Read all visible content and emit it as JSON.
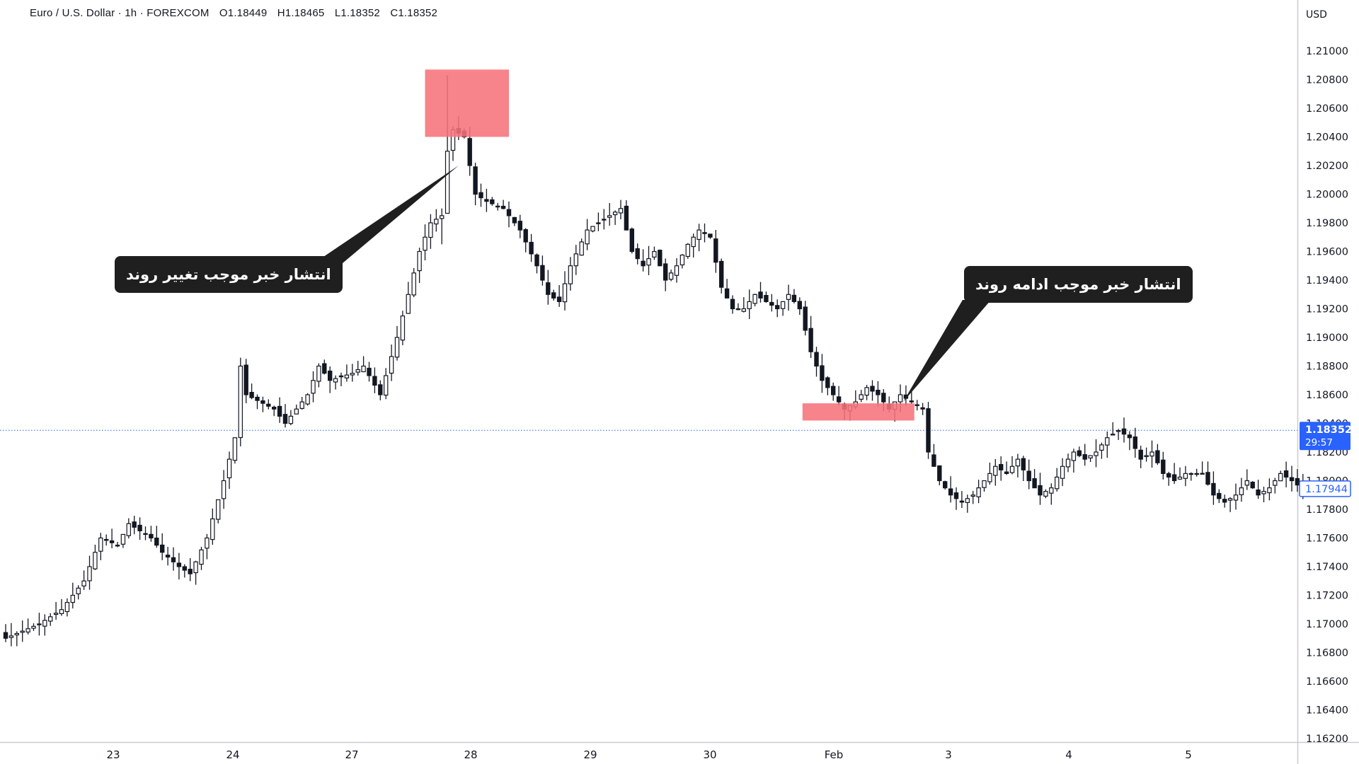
{
  "header": {
    "symbol": "Euro / U.S. Dollar · 1h · FOREXCOM",
    "open": "O1.18449",
    "high": "H1.18465",
    "low": "L1.18352",
    "close": "C1.18352"
  },
  "currency_label": "USD",
  "current_price": {
    "value": 1.18352,
    "label": "1.18352",
    "countdown": "29:57"
  },
  "marker_price": {
    "value": 1.17944,
    "label": "1.17944"
  },
  "annotations": [
    {
      "text": "انتشار خبر موجب تغییر روند"
    },
    {
      "text": "انتشار خبر موجب ادامه روند"
    }
  ],
  "colors": {
    "candle": "#131722",
    "highlight": "#f6727b",
    "price_badge": "#2962ff",
    "callout_bg": "#1f1f1f",
    "axis_text": "#131722"
  },
  "chart_data": {
    "type": "candlestick",
    "x_tick_labels": [
      "23",
      "24",
      "27",
      "28",
      "29",
      "30",
      "Feb",
      "3",
      "4",
      "5"
    ],
    "y_tick_labels": [
      "1.21000",
      "1.20800",
      "1.20600",
      "1.20400",
      "1.20200",
      "1.20000",
      "1.19800",
      "1.19600",
      "1.19400",
      "1.19200",
      "1.19000",
      "1.18800",
      "1.18600",
      "1.18400",
      "1.18200",
      "1.18000",
      "1.17800",
      "1.17600",
      "1.17400",
      "1.17200",
      "1.17000",
      "1.16800",
      "1.16600",
      "1.16400",
      "1.16200"
    ],
    "ylim": [
      1.162,
      1.21
    ],
    "close_path": [
      [
        0,
        1.169
      ],
      [
        6,
        1.17
      ],
      [
        10,
        1.171
      ],
      [
        14,
        1.173
      ],
      [
        17,
        1.176
      ],
      [
        20,
        1.1755
      ],
      [
        22,
        1.177
      ],
      [
        26,
        1.176
      ],
      [
        28,
        1.175
      ],
      [
        31,
        1.174
      ],
      [
        33,
        1.1735
      ],
      [
        36,
        1.176
      ],
      [
        39,
        1.18
      ],
      [
        41,
        1.183
      ],
      [
        42,
        1.188
      ],
      [
        43,
        1.186
      ],
      [
        48,
        1.185
      ],
      [
        50,
        1.184
      ],
      [
        54,
        1.186
      ],
      [
        56,
        1.188
      ],
      [
        58,
        1.187
      ],
      [
        62,
        1.1875
      ],
      [
        64,
        1.188
      ],
      [
        67,
        1.186
      ],
      [
        70,
        1.19
      ],
      [
        72,
        1.193
      ],
      [
        74,
        1.196
      ],
      [
        76,
        1.198
      ],
      [
        78,
        1.1985
      ],
      [
        79,
        1.203
      ],
      [
        80,
        1.2045
      ],
      [
        82,
        1.204
      ],
      [
        84,
        1.2
      ],
      [
        86,
        1.1995
      ],
      [
        89,
        1.199
      ],
      [
        92,
        1.1975
      ],
      [
        95,
        1.195
      ],
      [
        97,
        1.193
      ],
      [
        99,
        1.1925
      ],
      [
        101,
        1.195
      ],
      [
        104,
        1.1975
      ],
      [
        106,
        1.198
      ],
      [
        108,
        1.1985
      ],
      [
        110,
        1.199
      ],
      [
        112,
        1.196
      ],
      [
        114,
        1.195
      ],
      [
        116,
        1.196
      ],
      [
        118,
        1.194
      ],
      [
        120,
        1.195
      ],
      [
        122,
        1.1965
      ],
      [
        124,
        1.1975
      ],
      [
        126,
        1.197
      ],
      [
        128,
        1.1935
      ],
      [
        130,
        1.192
      ],
      [
        132,
        1.192
      ],
      [
        134,
        1.193
      ],
      [
        136,
        1.1925
      ],
      [
        138,
        1.192
      ],
      [
        140,
        1.193
      ],
      [
        142,
        1.192
      ],
      [
        144,
        1.189
      ],
      [
        146,
        1.187
      ],
      [
        148,
        1.186
      ],
      [
        150,
        1.185
      ],
      [
        152,
        1.1855
      ],
      [
        154,
        1.1865
      ],
      [
        156,
        1.186
      ],
      [
        158,
        1.185
      ],
      [
        160,
        1.186
      ],
      [
        162,
        1.1855
      ],
      [
        164,
        1.185
      ],
      [
        165,
        1.182
      ],
      [
        167,
        1.18
      ],
      [
        169,
        1.179
      ],
      [
        171,
        1.1785
      ],
      [
        173,
        1.179
      ],
      [
        175,
        1.18
      ],
      [
        177,
        1.181
      ],
      [
        179,
        1.1805
      ],
      [
        181,
        1.1815
      ],
      [
        183,
        1.18
      ],
      [
        185,
        1.179
      ],
      [
        187,
        1.1795
      ],
      [
        189,
        1.181
      ],
      [
        191,
        1.182
      ],
      [
        193,
        1.1815
      ],
      [
        195,
        1.182
      ],
      [
        197,
        1.183
      ],
      [
        199,
        1.1835
      ],
      [
        201,
        1.183
      ],
      [
        203,
        1.1815
      ],
      [
        205,
        1.182
      ],
      [
        207,
        1.1805
      ],
      [
        209,
        1.18
      ],
      [
        211,
        1.1805
      ],
      [
        214,
        1.1805
      ],
      [
        216,
        1.179
      ],
      [
        218,
        1.1785
      ],
      [
        220,
        1.179
      ],
      [
        222,
        1.18
      ],
      [
        224,
        1.179
      ],
      [
        226,
        1.1795
      ],
      [
        228,
        1.1805
      ],
      [
        230,
        1.18
      ],
      [
        232,
        1.1794
      ]
    ],
    "highlight_zones": [
      {
        "x_start": 75.0,
        "x_end": 90.0,
        "y_low": 1.204,
        "y_high": 1.2087
      },
      {
        "x_start": 142.5,
        "x_end": 162.5,
        "y_low": 1.1842,
        "y_high": 1.1854
      }
    ],
    "callout_pointers": [
      {
        "x": 81,
        "y": 1.202
      },
      {
        "x": 160.5,
        "y": 1.1855
      }
    ]
  }
}
